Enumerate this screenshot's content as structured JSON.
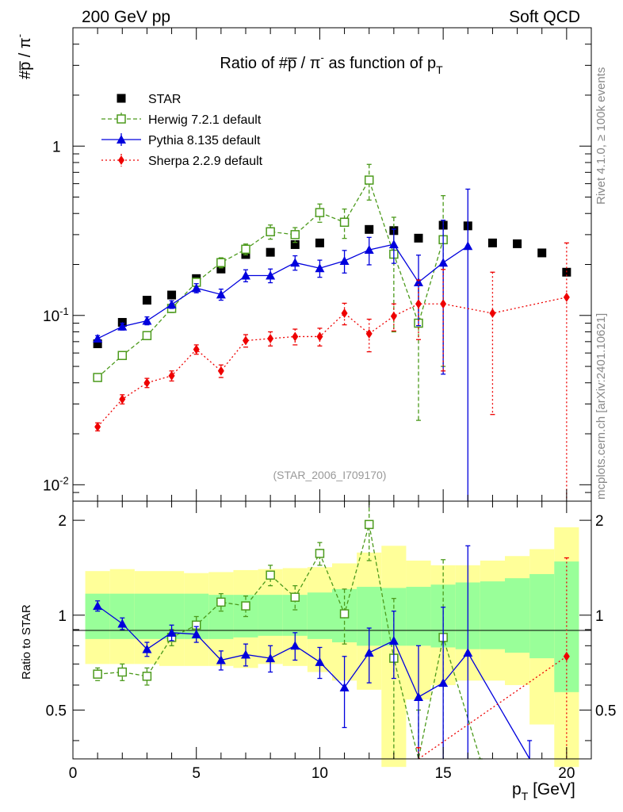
{
  "header": {
    "left": "200 GeV pp",
    "right": "Soft QCD"
  },
  "side": {
    "rivet": "Rivet 4.1.0, ≥ 100k events",
    "mcplots": "mcplots.cern.ch [arXiv:2401.10621]"
  },
  "chart_data": {
    "type": "line",
    "title_main": "Ratio of #p̅ / π",
    "title_sup": "-",
    "title_mid": " as function of p",
    "title_sub": "T",
    "ylabel_main": "#p̅ / π",
    "ylabel_sup": "-",
    "ylabel_ratio": "Ratio to STAR",
    "xlabel_main": "p",
    "xlabel_sub": "T",
    "xlabel_unit": " [GeV]",
    "annotation": "(STAR_2006_I709170)",
    "yscale": "log",
    "ylim": [
      0.008,
      5
    ],
    "ratio_ylim": [
      0.35,
      2.3
    ],
    "xlim": [
      0,
      21
    ],
    "x_ticks": [
      0,
      5,
      10,
      15,
      20
    ],
    "y_ticks": [
      {
        "v": 0.01,
        "b": "10",
        "e": "-2"
      },
      {
        "v": 0.1,
        "b": "10",
        "e": "-1"
      },
      {
        "v": 1,
        "b": "1",
        "e": ""
      }
    ],
    "ratio_ticks": [
      0.5,
      1,
      2
    ],
    "series": [
      {
        "name": "STAR",
        "color": "#000000",
        "marker": "square",
        "x": [
          1,
          2,
          3,
          4,
          5,
          6,
          7,
          8,
          9,
          10,
          11,
          12,
          13,
          14,
          15,
          16,
          17,
          18,
          19,
          20
        ],
        "y": [
          0.068,
          0.091,
          0.123,
          0.132,
          0.165,
          0.188,
          0.229,
          0.236,
          0.262,
          0.268,
          0.356,
          0.322,
          0.317,
          0.286,
          0.341,
          0.338,
          0.268,
          0.265,
          0.234,
          0.18
        ],
        "band_x": [
          0.5,
          1.5,
          2.5,
          3.5,
          4.5,
          5.5,
          6.5,
          7.5,
          8.5,
          9.5,
          10.5,
          11.5,
          12.5,
          13.5,
          14.5,
          15.5,
          16.5,
          17.5,
          18.5,
          19.5,
          20.5
        ],
        "band_lo_in": [
          0.84,
          0.84,
          0.84,
          0.84,
          0.84,
          0.84,
          0.85,
          0.86,
          0.86,
          0.84,
          0.82,
          0.8,
          0.8,
          0.8,
          0.79,
          0.78,
          0.78,
          0.76,
          0.73,
          0.57
        ],
        "band_hi_in": [
          1.17,
          1.17,
          1.17,
          1.17,
          1.17,
          1.16,
          1.16,
          1.16,
          1.16,
          1.18,
          1.21,
          1.23,
          1.22,
          1.23,
          1.25,
          1.27,
          1.28,
          1.31,
          1.35,
          1.48
        ],
        "band_lo_out": [
          0.7,
          0.7,
          0.7,
          0.69,
          0.69,
          0.69,
          0.68,
          0.7,
          0.69,
          0.66,
          0.62,
          0.58,
          0.33,
          0.54,
          0.6,
          0.62,
          0.62,
          0.6,
          0.45,
          0.33
        ],
        "band_hi_out": [
          1.38,
          1.4,
          1.38,
          1.38,
          1.36,
          1.37,
          1.39,
          1.4,
          1.41,
          1.42,
          1.46,
          1.58,
          1.66,
          1.49,
          1.44,
          1.44,
          1.49,
          1.54,
          1.62,
          1.9
        ]
      },
      {
        "name": "Herwig 7.2.1 default",
        "color": "#4c9a1c",
        "marker": "open-square",
        "dash": "5,3",
        "x": [
          1,
          2,
          3,
          4,
          5,
          6,
          7,
          8,
          9,
          10,
          11,
          12,
          13,
          14,
          15
        ],
        "y": [
          0.043,
          0.058,
          0.076,
          0.11,
          0.157,
          0.205,
          0.246,
          0.312,
          0.3,
          0.405,
          0.355,
          0.63,
          0.23,
          0.09,
          0.28
        ],
        "err": [
          0.002,
          0.003,
          0.004,
          0.006,
          0.009,
          0.014,
          0.018,
          0.03,
          0.03,
          0.05,
          0.07,
          0.15,
          0.15,
          0.066,
          0.23
        ],
        "ratio": [
          0.65,
          0.66,
          0.64,
          0.85,
          0.93,
          1.1,
          1.07,
          1.34,
          1.14,
          1.57,
          1.01,
          1.94,
          0.73,
          0.3,
          0.85,
          0.2
        ],
        "ratio_err": [
          0.03,
          0.04,
          0.04,
          0.05,
          0.06,
          0.07,
          0.08,
          0.1,
          0.1,
          0.13,
          0.2,
          0.45,
          0.4,
          0.2,
          0.65,
          0.1
        ],
        "ratio_x": [
          1,
          2,
          3,
          4,
          5,
          6,
          7,
          8,
          9,
          10,
          11,
          12,
          13,
          14,
          15,
          16.5
        ]
      },
      {
        "name": "Pythia 8.135 default",
        "color": "#0000dd",
        "marker": "triangle",
        "dash": "",
        "x": [
          1,
          2,
          3,
          4,
          5,
          6,
          7,
          8,
          9,
          10,
          11,
          12,
          13,
          14,
          15,
          16
        ],
        "y": [
          0.073,
          0.086,
          0.093,
          0.116,
          0.145,
          0.133,
          0.172,
          0.172,
          0.205,
          0.19,
          0.21,
          0.244,
          0.263,
          0.157,
          0.205,
          0.257
        ],
        "err": [
          0.003,
          0.004,
          0.005,
          0.006,
          0.009,
          0.01,
          0.014,
          0.016,
          0.02,
          0.022,
          0.032,
          0.045,
          0.06,
          0.07,
          0.16,
          0.3
        ],
        "ratio": [
          1.07,
          0.94,
          0.78,
          0.88,
          0.87,
          0.72,
          0.75,
          0.73,
          0.8,
          0.71,
          0.59,
          0.76,
          0.83,
          0.55,
          0.61,
          0.76,
          0.3
        ],
        "ratio_err": [
          0.04,
          0.04,
          0.04,
          0.05,
          0.05,
          0.05,
          0.06,
          0.07,
          0.08,
          0.08,
          0.15,
          0.15,
          0.2,
          0.25,
          0.45,
          0.9,
          0.1
        ],
        "ratio_x": [
          1,
          2,
          3,
          4,
          5,
          6,
          7,
          8,
          9,
          10,
          11,
          12,
          13,
          14,
          15,
          16,
          18.5
        ]
      },
      {
        "name": "Sherpa 2.2.9 default",
        "color": "#ee0000",
        "marker": "diamond",
        "dash": "2,3",
        "x": [
          1,
          2,
          3,
          4,
          5,
          6,
          7,
          8,
          9,
          10,
          11,
          12,
          13,
          14,
          15,
          17,
          20
        ],
        "y": [
          0.022,
          0.032,
          0.04,
          0.044,
          0.063,
          0.047,
          0.071,
          0.073,
          0.075,
          0.075,
          0.103,
          0.078,
          0.099,
          0.117,
          0.117,
          0.103,
          0.128
        ],
        "err": [
          0.0012,
          0.002,
          0.0025,
          0.003,
          0.004,
          0.004,
          0.006,
          0.007,
          0.008,
          0.009,
          0.015,
          0.017,
          0.018,
          0.045,
          0.07,
          0.077,
          0.14
        ],
        "ratio": [
          0.33,
          0.74
        ],
        "ratio_err": [
          0.05,
          0.78
        ],
        "ratio_x": [
          14,
          20
        ]
      }
    ]
  }
}
